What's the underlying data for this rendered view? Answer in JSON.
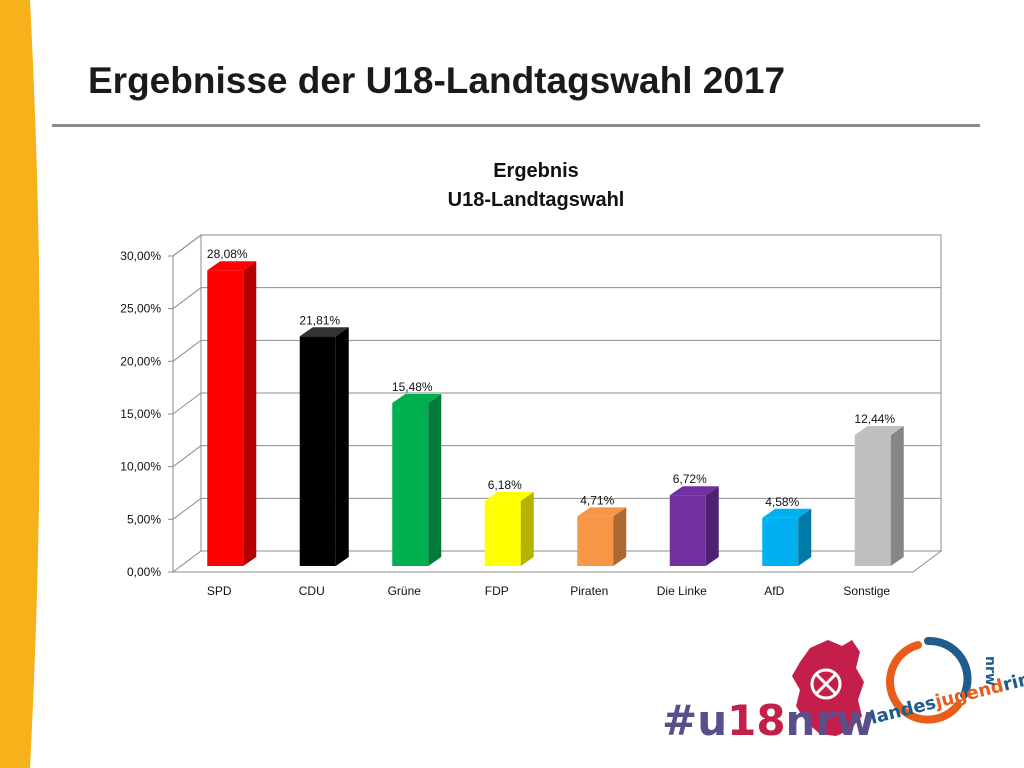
{
  "slide": {
    "title": "Ergebnisse der U18-Landtagswahl 2017"
  },
  "chart_data": {
    "type": "bar",
    "title_lines": [
      "Ergebnis",
      "U18-Landtagswahl"
    ],
    "categories": [
      "SPD",
      "CDU",
      "Grüne",
      "FDP",
      "Piraten",
      "Die Linke",
      "AfD",
      "Sonstige"
    ],
    "values": [
      28.08,
      21.81,
      15.48,
      6.18,
      4.71,
      6.72,
      4.58,
      12.44
    ],
    "value_labels": [
      "28,08%",
      "21,81%",
      "15,48%",
      "6,18%",
      "4,71%",
      "6,72%",
      "4,58%",
      "12,44%"
    ],
    "colors": [
      "#ff0000",
      "#000000",
      "#00b050",
      "#ffff00",
      "#f79646",
      "#7030a0",
      "#00b0f0",
      "#bfbfbf"
    ],
    "ylim": [
      0,
      30
    ],
    "yticks": [
      0,
      5,
      10,
      15,
      20,
      25,
      30
    ],
    "ytick_labels": [
      "0,00%",
      "5,00%",
      "10,00%",
      "15,00%",
      "20,00%",
      "25,00%",
      "30,00%"
    ],
    "xlabel": "",
    "ylabel": "",
    "grid": true,
    "legend": "none"
  },
  "logos": {
    "u18": {
      "text": "#u18nrw",
      "primary_color": "#5a4f8a",
      "accent_color": "#c41e4a"
    },
    "ljr": {
      "text_a": "landes",
      "text_b": "jugend",
      "text_c": "ring",
      "text_d": "nrw"
    }
  },
  "decor": {
    "left_band_color": "#f7b21b"
  }
}
